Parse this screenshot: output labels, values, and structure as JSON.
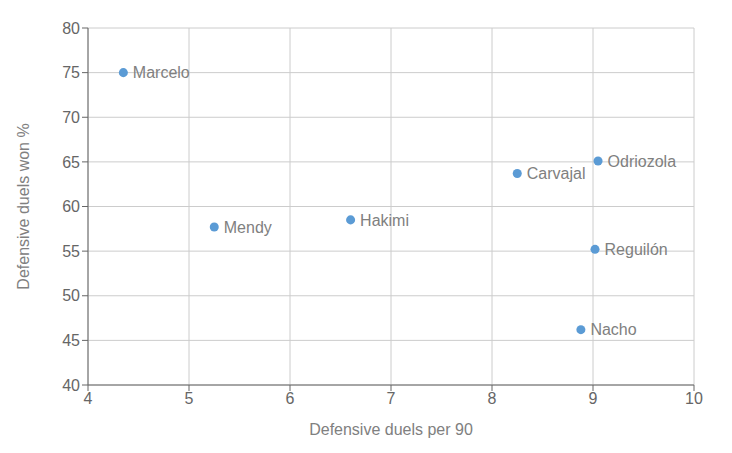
{
  "chart_data": {
    "type": "scatter",
    "xlabel": "Defensive duels per 90",
    "ylabel": "Defensive duels won %",
    "x": [
      4.35,
      5.25,
      6.6,
      8.25,
      9.05,
      9.02,
      8.88
    ],
    "values": [
      75.0,
      57.7,
      58.5,
      63.7,
      65.1,
      55.2,
      46.2
    ],
    "labels": [
      "Marcelo",
      "Mendy",
      "Hakimi",
      "Carvajal",
      "Odriozola",
      "Reguilón",
      "Nacho"
    ],
    "color": "#5b9bd5",
    "xlim": [
      4,
      10
    ],
    "ylim": [
      40,
      80
    ],
    "xticks": [
      4,
      5,
      6,
      7,
      8,
      9,
      10
    ],
    "yticks": [
      40,
      45,
      50,
      55,
      60,
      65,
      70,
      75,
      80
    ],
    "grid": true
  }
}
